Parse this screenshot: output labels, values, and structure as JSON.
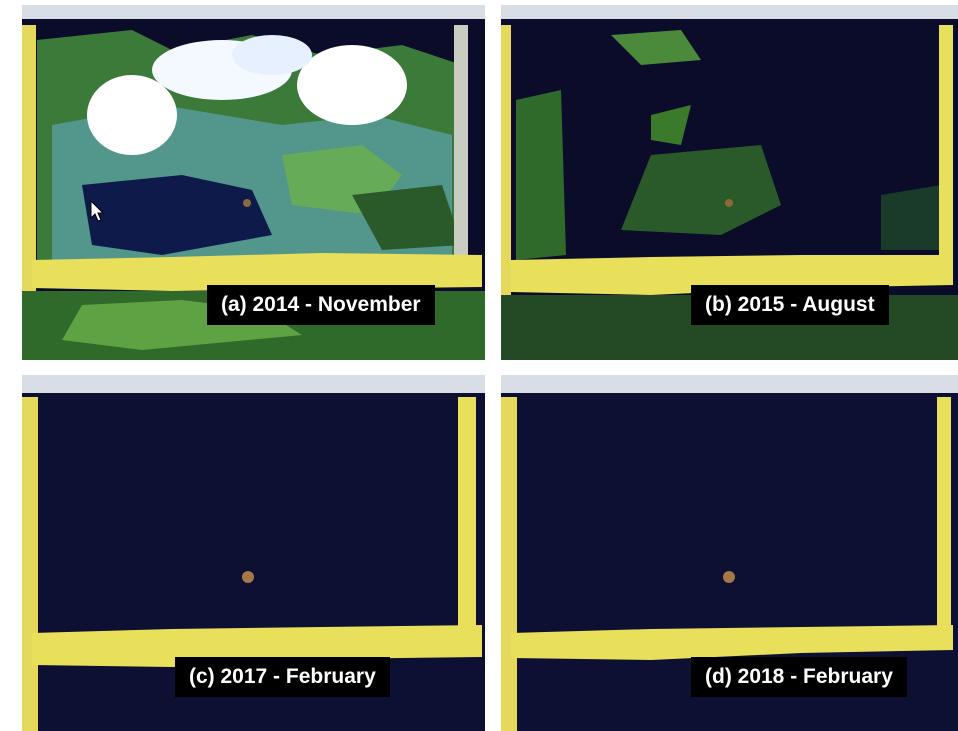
{
  "panels": [
    {
      "id": "a",
      "caption": "(a)  2014 - November"
    },
    {
      "id": "b",
      "caption": "(b)  2015 - August"
    },
    {
      "id": "c",
      "caption": "(c)  2017 - February"
    },
    {
      "id": "d",
      "caption": "(d)  2018 - February"
    }
  ],
  "colors": {
    "background": "#ffffff",
    "water": "#0d0f33",
    "vegetation": "#2f6a2a",
    "levee": "#e8df5a",
    "cloud": "#ffffff",
    "caption_bg": "#000000",
    "caption_text": "#ffffff"
  }
}
